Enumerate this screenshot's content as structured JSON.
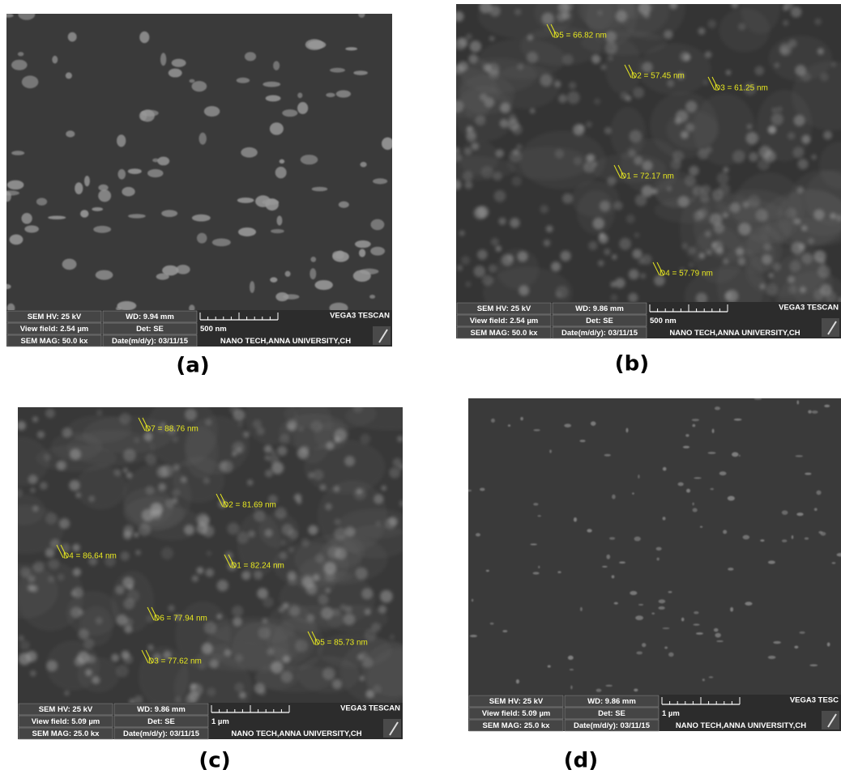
{
  "panels": [
    {
      "label": "(a)",
      "info": {
        "sem_hv": "SEM HV: 25 kV",
        "wd": "WD: 9.94 mm",
        "view_field": "View field: 2.54 µm",
        "det": "Det: SE",
        "sem_mag": "SEM MAG: 50.0 kx",
        "date": "Date(m/d/y): 03/11/15",
        "scale": "500 nm",
        "brand": "VEGA3 TESCAN",
        "org": "NANO TECH,ANNA UNIVERSITY,CH"
      },
      "measurements": []
    },
    {
      "label": "(b)",
      "info": {
        "sem_hv": "SEM HV: 25 kV",
        "wd": "WD: 9.86 mm",
        "view_field": "View field: 2.54 µm",
        "det": "Det: SE",
        "sem_mag": "SEM MAG: 50.0 kx",
        "date": "Date(m/d/y): 03/11/15",
        "scale": "500 nm",
        "brand": "VEGA3 TESCAN",
        "org": "NANO TECH,ANNA UNIVERSITY,CH"
      },
      "measurements": [
        "D5 = 66.82 nm",
        "D2 = 57.45 nm",
        "D3 = 61.25 nm",
        "D1 = 72.17 nm",
        "D4 = 57.79 nm"
      ]
    },
    {
      "label": "(c)",
      "info": {
        "sem_hv": "SEM HV: 25 kV",
        "wd": "WD: 9.86 mm",
        "view_field": "View field: 5.09 µm",
        "det": "Det: SE",
        "sem_mag": "SEM MAG: 25.0 kx",
        "date": "Date(m/d/y): 03/11/15",
        "scale": "1 µm",
        "brand": "VEGA3 TESCAN",
        "org": "NANO TECH,ANNA UNIVERSITY,CH"
      },
      "measurements": [
        "D7 = 88.76 nm",
        "D2 = 81.69 nm",
        "D4 = 86.64 nm",
        "D1 = 82.24 nm",
        "D6 = 77.94 nm",
        "D5 = 85.73 nm",
        "D3 = 77.62 nm"
      ]
    },
    {
      "label": "(d)",
      "info": {
        "sem_hv": "SEM HV: 25 kV",
        "wd": "WD: 9.86 mm",
        "view_field": "View field: 5.09 µm",
        "det": "Det: SE",
        "sem_mag": "SEM MAG: 25.0 kx",
        "date": "Date(m/d/y): 03/11/15",
        "scale": "1 µm",
        "brand": "VEGA3 TESC",
        "org": "NANO TECH,ANNA UNIVERSITY,CH"
      },
      "measurements": []
    }
  ]
}
